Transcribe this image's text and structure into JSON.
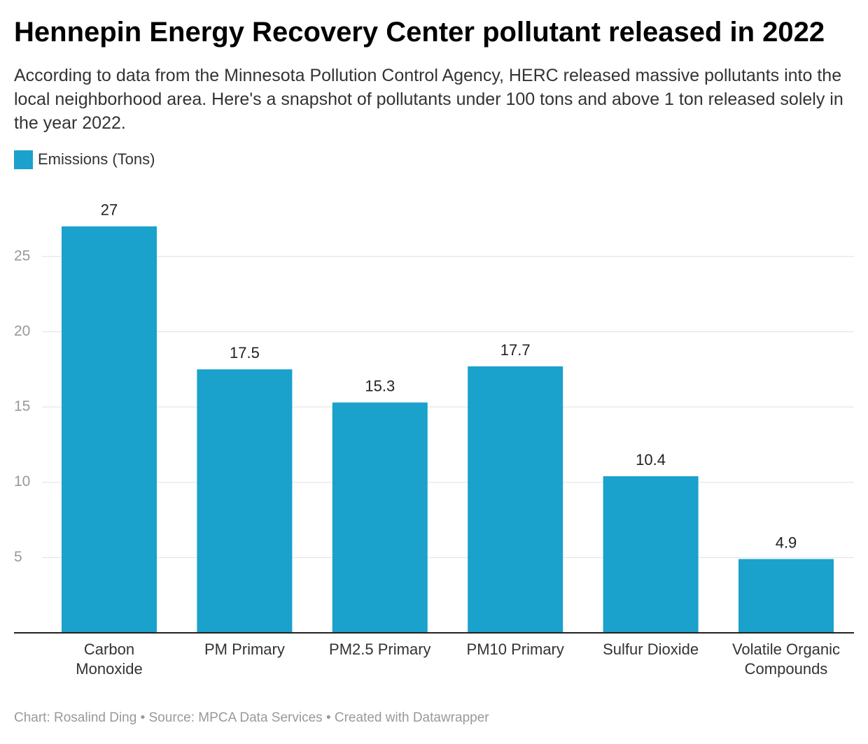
{
  "title": "Hennepin Energy Recovery Center pollutant released in 2022",
  "subtitle": "According to data from the Minnesota Pollution Control Agency, HERC released massive pollutants into the local neighborhood area. Here's a snapshot of pollutants under 100 tons and above 1 ton released solely in the year 2022.",
  "footer": "Chart: Rosalind Ding • Source: MPCA Data Services • Created with Datawrapper",
  "colors": {
    "bar": "#1aa1cc",
    "grid": "#e0e0e0",
    "axis": "#222222",
    "tick_label": "#999999",
    "value_label": "#222222",
    "category_label": "#333333"
  },
  "chart_data": {
    "type": "bar",
    "categories": [
      [
        "Carbon",
        "Monoxide"
      ],
      [
        "PM Primary"
      ],
      [
        "PM2.5 Primary"
      ],
      [
        "PM10 Primary"
      ],
      [
        "Sulfur Dioxide"
      ],
      [
        "Volatile Organic",
        "Compounds"
      ]
    ],
    "series": [
      {
        "name": "Emissions (Tons)",
        "values": [
          27,
          17.5,
          15.3,
          17.7,
          10.4,
          4.9
        ]
      }
    ],
    "value_labels": [
      "27",
      "17.5",
      "15.3",
      "17.7",
      "10.4",
      "4.9"
    ],
    "yticks": [
      5,
      10,
      15,
      20,
      25
    ],
    "ylim": [
      0,
      30
    ],
    "legend": "top-left",
    "grid": true
  }
}
